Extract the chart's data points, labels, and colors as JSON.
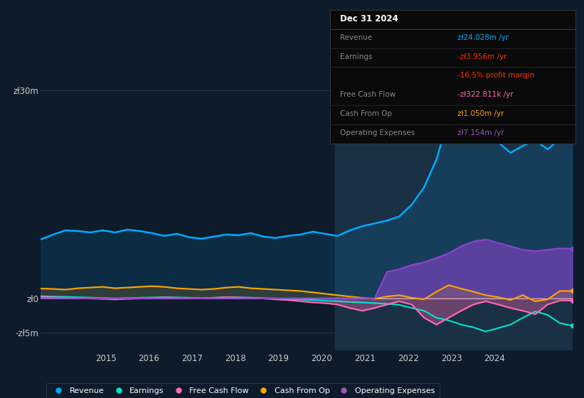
{
  "bg_color": "#0d1b2a",
  "plot_bg_color": "#0d1b2a",
  "grid_color": "#1e3a4a",
  "title": "Dec 31 2024",
  "info_box_title": "Dec 31 2024",
  "info_rows": [
    {
      "label": "Revenue",
      "value": "zł24.028m /yr",
      "label_color": "#888888",
      "value_color": "#00aaff"
    },
    {
      "label": "Earnings",
      "value": "-zł3.956m /yr",
      "label_color": "#888888",
      "value_color": "#ff3300"
    },
    {
      "label": "",
      "value": "-16.5% profit margin",
      "label_color": "#888888",
      "value_color": "#ff3300"
    },
    {
      "label": "Free Cash Flow",
      "value": "-zł322.811k /yr",
      "label_color": "#888888",
      "value_color": "#ff69b4"
    },
    {
      "label": "Cash From Op",
      "value": "zł1.050m /yr",
      "label_color": "#888888",
      "value_color": "#ffa500"
    },
    {
      "label": "Operating Expenses",
      "value": "zł7.154m /yr",
      "label_color": "#888888",
      "value_color": "#9b59b6"
    }
  ],
  "ylim": [
    -7500000,
    35000000
  ],
  "yticks": [
    30000000,
    0,
    -5000000
  ],
  "ytick_labels": [
    "zł30m",
    "zł0",
    "-zł5m"
  ],
  "xlim_start": 2013.5,
  "xlim_end": 2025.8,
  "xticks": [
    2015,
    2016,
    2017,
    2018,
    2019,
    2020,
    2021,
    2022,
    2023,
    2024
  ],
  "highlight_x_start": 2020.3,
  "highlight_x_end": 2025.8,
  "highlight_color": "#1c3347",
  "colors": {
    "revenue": "#00aaff",
    "earnings": "#00e5cc",
    "free_cash_flow": "#ff69b4",
    "cash_from_op": "#ffa500",
    "op_expenses": "#8844cc"
  },
  "legend": [
    {
      "label": "Revenue",
      "color": "#00aaff"
    },
    {
      "label": "Earnings",
      "color": "#00e5cc"
    },
    {
      "label": "Free Cash Flow",
      "color": "#ff69b4"
    },
    {
      "label": "Cash From Op",
      "color": "#ffa500"
    },
    {
      "label": "Operating Expenses",
      "color": "#9b59b6"
    }
  ],
  "revenue": [
    8500000,
    9200000,
    9800000,
    9700000,
    9500000,
    9800000,
    9500000,
    9900000,
    9700000,
    9400000,
    9000000,
    9300000,
    8800000,
    8600000,
    8900000,
    9200000,
    9100000,
    9400000,
    8900000,
    8700000,
    9000000,
    9200000,
    9600000,
    9300000,
    9000000,
    9800000,
    10400000,
    10800000,
    11200000,
    11800000,
    13500000,
    16000000,
    20000000,
    26000000,
    30000000,
    28500000,
    26000000,
    22500000,
    21000000,
    22000000,
    22800000,
    21500000,
    23000000,
    24028000
  ],
  "earnings": [
    300000,
    250000,
    200000,
    150000,
    100000,
    50000,
    -20000,
    30000,
    80000,
    120000,
    160000,
    120000,
    80000,
    30000,
    80000,
    160000,
    120000,
    80000,
    30000,
    -30000,
    -80000,
    -160000,
    -250000,
    -350000,
    -430000,
    -520000,
    -600000,
    -700000,
    -800000,
    -950000,
    -1400000,
    -1800000,
    -2800000,
    -3200000,
    -3800000,
    -4200000,
    -4800000,
    -4300000,
    -3800000,
    -2800000,
    -1900000,
    -2400000,
    -3600000,
    -3956000
  ],
  "free_cash_flow": [
    180000,
    140000,
    80000,
    30000,
    -30000,
    -80000,
    -160000,
    -80000,
    -30000,
    80000,
    120000,
    80000,
    30000,
    -30000,
    80000,
    160000,
    120000,
    80000,
    -30000,
    -160000,
    -250000,
    -430000,
    -600000,
    -700000,
    -900000,
    -1400000,
    -1800000,
    -1400000,
    -900000,
    -430000,
    -900000,
    -2800000,
    -3800000,
    -2800000,
    -1800000,
    -900000,
    -430000,
    -900000,
    -1400000,
    -1800000,
    -2300000,
    -900000,
    -322811,
    -322811
  ],
  "cash_from_op": [
    1400000,
    1350000,
    1250000,
    1450000,
    1550000,
    1650000,
    1450000,
    1550000,
    1650000,
    1750000,
    1650000,
    1450000,
    1350000,
    1250000,
    1350000,
    1550000,
    1650000,
    1450000,
    1350000,
    1250000,
    1150000,
    1050000,
    850000,
    650000,
    450000,
    250000,
    80000,
    -80000,
    250000,
    450000,
    80000,
    -160000,
    950000,
    1900000,
    1400000,
    950000,
    450000,
    160000,
    -250000,
    450000,
    -450000,
    -160000,
    1050000,
    1050000
  ],
  "op_expenses": [
    0,
    0,
    0,
    0,
    0,
    0,
    0,
    0,
    0,
    0,
    0,
    0,
    0,
    0,
    0,
    0,
    0,
    0,
    0,
    0,
    0,
    0,
    0,
    0,
    0,
    0,
    0,
    0,
    3800000,
    4200000,
    4800000,
    5200000,
    5800000,
    6500000,
    7500000,
    8200000,
    8500000,
    8000000,
    7500000,
    7000000,
    6800000,
    7000000,
    7200000,
    7154000
  ]
}
